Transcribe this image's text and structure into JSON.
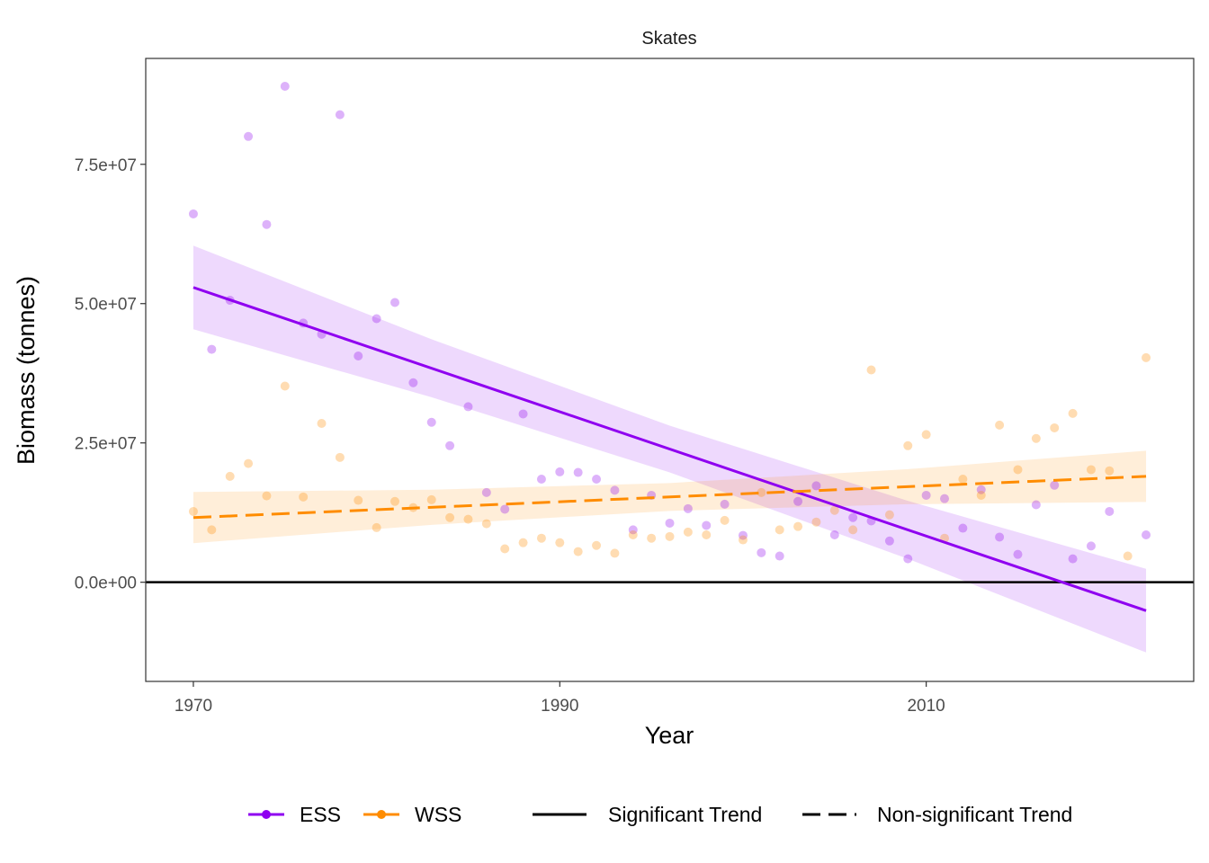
{
  "chart_data": {
    "type": "scatter",
    "title": "Skates",
    "xlabel": "Year",
    "ylabel": "Biomass (tonnes)",
    "xlim": [
      1967.4,
      2024.6
    ],
    "ylim": [
      -17800000.0,
      94000000.0
    ],
    "x_ticks": [
      1970,
      1990,
      2010
    ],
    "x_tick_labels": [
      "1970",
      "1990",
      "2010"
    ],
    "y_ticks": [
      0,
      25000000,
      50000000,
      75000000
    ],
    "y_tick_labels": [
      "0.0e+00",
      "2.5e+07",
      "5.0e+07",
      "7.5e+07"
    ],
    "grid": false,
    "hline": 0,
    "legend_position": "bottom",
    "series": [
      {
        "name": "ESS",
        "color": "#8f00f0",
        "years": [
          1970,
          1971,
          1972,
          1973,
          1974,
          1975,
          1976,
          1977,
          1978,
          1979,
          1980,
          1981,
          1982,
          1983,
          1984,
          1985,
          1986,
          1987,
          1988,
          1989,
          1990,
          1991,
          1992,
          1993,
          1994,
          1995,
          1996,
          1997,
          1998,
          1999,
          2000,
          2001,
          2002,
          2003,
          2004,
          2005,
          2006,
          2007,
          2008,
          2009,
          2010,
          2011,
          2012,
          2013,
          2014,
          2015,
          2016,
          2017,
          2018,
          2019,
          2020,
          2022
        ],
        "values": [
          66100000,
          41800000,
          50600000,
          80000000,
          64200000,
          89000000,
          46500000,
          44500000,
          83900000,
          40600000,
          47300000,
          50200000,
          35800000,
          28700000,
          24500000,
          31500000,
          16100000,
          13100000,
          30200000,
          18500000,
          19800000,
          19700000,
          18500000,
          16500000,
          9400000,
          15600000,
          10600000,
          13200000,
          10200000,
          14000000,
          8400000,
          5300000,
          4700000,
          14500000,
          17300000,
          8500000,
          11600000,
          11000000,
          7400000,
          4200000,
          15600000,
          15000000,
          9700000,
          16600000,
          8100000,
          5000000,
          13900000,
          17400000,
          4200000,
          6500000,
          12700000,
          8500000
        ],
        "trend": {
          "type": "Significant Trend",
          "years": [
            1970,
            2022
          ],
          "values": [
            52900000,
            -5100000
          ]
        },
        "ribbon": {
          "years": [
            1970,
            1983,
            1996,
            2009,
            2022
          ],
          "lower": [
            45400000,
            33200000,
            19700000,
            4200000,
            -12600000
          ],
          "upper": [
            60400000,
            43600000,
            28100000,
            14600000,
            2400000
          ]
        }
      },
      {
        "name": "WSS",
        "color": "#ff8c00",
        "years": [
          1970,
          1971,
          1972,
          1973,
          1974,
          1975,
          1976,
          1977,
          1978,
          1979,
          1980,
          1981,
          1982,
          1983,
          1984,
          1985,
          1986,
          1987,
          1988,
          1989,
          1990,
          1991,
          1992,
          1993,
          1994,
          1995,
          1996,
          1997,
          1998,
          1999,
          2000,
          2001,
          2002,
          2003,
          2004,
          2005,
          2006,
          2007,
          2008,
          2009,
          2010,
          2011,
          2012,
          2013,
          2014,
          2015,
          2016,
          2017,
          2018,
          2019,
          2020,
          2021,
          2022
        ],
        "values": [
          12700000,
          9400000,
          19000000,
          21300000,
          15500000,
          35200000,
          15300000,
          28500000,
          22400000,
          14700000,
          9800000,
          14500000,
          13400000,
          14800000,
          11600000,
          11300000,
          10500000,
          6000000,
          7100000,
          7900000,
          7100000,
          5500000,
          6600000,
          5200000,
          8500000,
          7900000,
          8200000,
          9000000,
          8500000,
          11100000,
          7600000,
          16100000,
          9400000,
          10000000,
          10800000,
          12900000,
          9400000,
          38100000,
          12100000,
          24500000,
          26500000,
          7900000,
          18500000,
          15600000,
          28200000,
          20200000,
          25800000,
          27700000,
          30300000,
          20200000,
          20000000,
          4700000,
          40300000
        ],
        "trend": {
          "type": "Non-significant Trend",
          "years": [
            1970,
            2022
          ],
          "values": [
            11600000,
            19000000
          ]
        },
        "ribbon": {
          "years": [
            1970,
            1983,
            1996,
            2009,
            2022
          ],
          "lower": [
            7000000,
            10300000,
            12800000,
            14000000,
            14400000
          ],
          "upper": [
            16200000,
            16600000,
            17800000,
            20300000,
            23600000
          ]
        }
      }
    ],
    "legend": {
      "colour_entries": [
        "ESS",
        "WSS"
      ],
      "linetype_entries": [
        "Significant Trend",
        "Non-significant Trend"
      ]
    }
  }
}
